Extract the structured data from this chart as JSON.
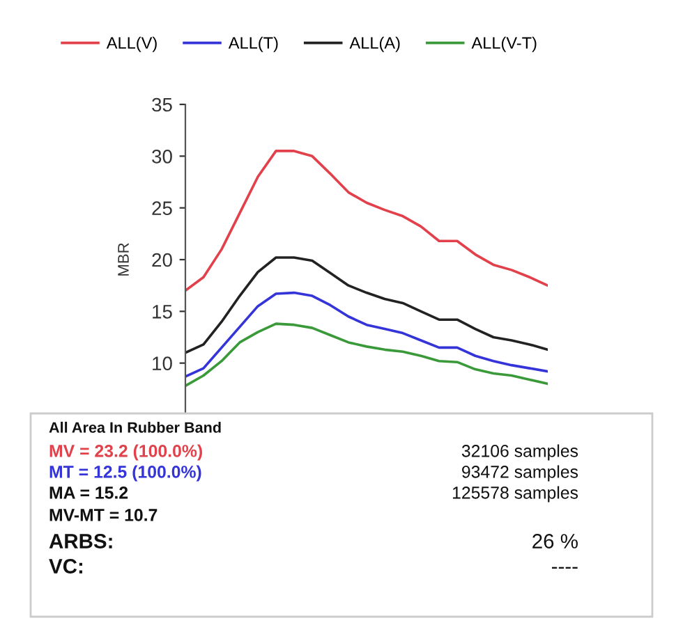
{
  "chart_data": {
    "type": "line",
    "ylabel": "MBR",
    "categories": [
      null,
      null,
      null,
      null,
      null,
      null,
      null,
      null,
      null,
      null,
      null,
      null,
      null,
      null,
      null,
      null,
      null,
      null,
      null,
      null,
      null
    ],
    "series": [
      {
        "name": "ALL(V)",
        "color": "#e2404a",
        "values": [
          17,
          18.3,
          21,
          24.5,
          28,
          30.5,
          30.5,
          30,
          28.3,
          26.5,
          25.5,
          24.8,
          24.2,
          23.2,
          21.8,
          21.8,
          20.5,
          19.5,
          19,
          18.3,
          17.5
        ]
      },
      {
        "name": "ALL(T)",
        "color": "#3434d8",
        "values": [
          8.7,
          9.5,
          11.5,
          13.5,
          15.5,
          16.7,
          16.8,
          16.5,
          15.6,
          14.5,
          13.7,
          13.3,
          12.9,
          12.2,
          11.5,
          11.5,
          10.7,
          10.2,
          9.8,
          9.5,
          9.2
        ]
      },
      {
        "name": "ALL(A)",
        "color": "#222222",
        "values": [
          11,
          11.8,
          14,
          16.5,
          18.8,
          20.2,
          20.2,
          19.9,
          18.7,
          17.5,
          16.8,
          16.2,
          15.8,
          15,
          14.2,
          14.2,
          13.3,
          12.5,
          12.2,
          11.8,
          11.3
        ]
      },
      {
        "name": "ALL(V-T)",
        "color": "#3a9a3a",
        "values": [
          7.8,
          8.8,
          10.2,
          12,
          13,
          13.8,
          13.7,
          13.4,
          12.7,
          12.0,
          11.6,
          11.3,
          11.1,
          10.7,
          10.2,
          10.1,
          9.4,
          9.0,
          8.8,
          8.4,
          8.0
        ]
      }
    ],
    "ylim": [
      5,
      35
    ],
    "yticks": [
      10,
      15,
      20,
      25,
      30,
      35
    ],
    "grid": false,
    "legend": "top",
    "marker": "none",
    "line_style": "solid",
    "annotations": [
      "All Area In Rubber Band",
      "MV = 23.2 (100.0%)",
      "32106 samples",
      "MT = 12.5 (100.0%)",
      "93472 samples",
      "MA = 15.2",
      "125578 samples",
      "MV-MT = 10.7",
      "ARBS:",
      "26 %",
      "VC:",
      "----"
    ]
  }
}
